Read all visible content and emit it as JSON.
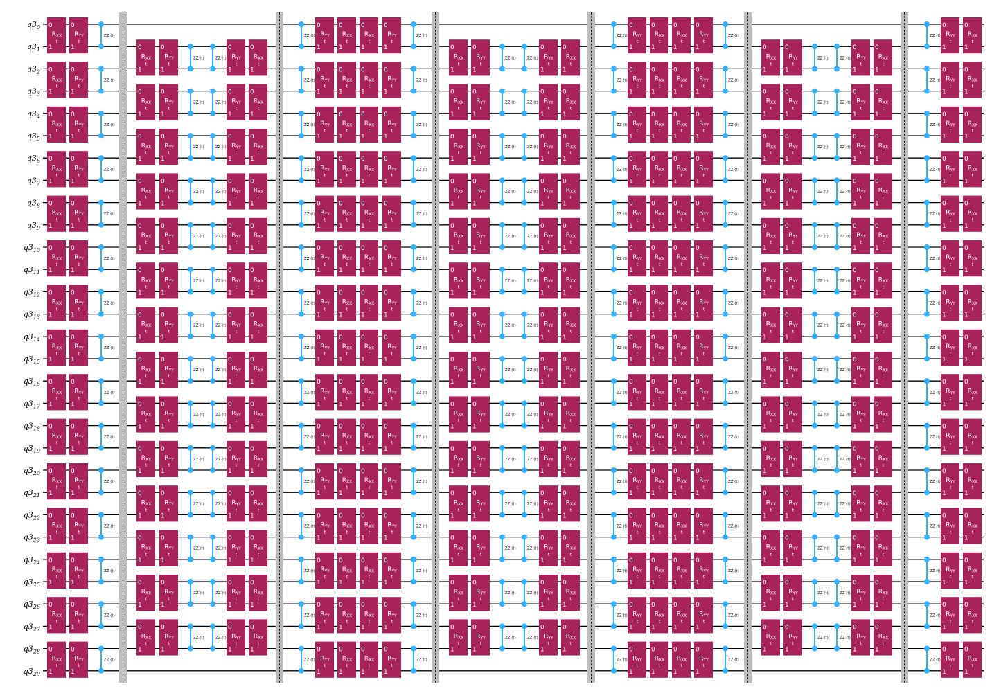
{
  "circuit": {
    "register": "q3",
    "num_qubits": 30,
    "colors": {
      "gate": "#a8235a",
      "zz": "#33b1ff",
      "wire": "#000000",
      "barrier": "#bdbdbd"
    },
    "gate_labels": {
      "RXX": {
        "base": "R",
        "sub": "XX",
        "param": "t"
      },
      "RYY": {
        "base": "R",
        "sub": "YY",
        "param": "t"
      },
      "ZZ": {
        "label": "ZZ (t)"
      }
    },
    "gate_qubit_labels": [
      "0",
      "1"
    ],
    "layers": [
      {
        "pairs": "even",
        "gates": [
          "RXX",
          "RYY",
          "ZZ"
        ]
      },
      {
        "pairs": "odd",
        "gates": [
          "RXX",
          "RYY",
          "ZZ",
          "ZZ",
          "RYY",
          "RXX"
        ]
      },
      {
        "pairs": "even",
        "gates": [
          "ZZ",
          "RYY",
          "RXX",
          "RXX",
          "RYY",
          "ZZ"
        ]
      },
      {
        "pairs": "odd",
        "gates": [
          "RXX",
          "RYY",
          "ZZ",
          "ZZ",
          "RYY",
          "RXX"
        ]
      },
      {
        "pairs": "even",
        "gates": [
          "ZZ",
          "RYY",
          "RXX",
          "RXX",
          "RYY",
          "ZZ"
        ]
      },
      {
        "pairs": "odd",
        "gates": [
          "RXX",
          "RYY",
          "ZZ",
          "ZZ",
          "RYY",
          "RXX"
        ]
      },
      {
        "pairs": "even",
        "gates": [
          "ZZ",
          "RYY",
          "RXX"
        ]
      }
    ],
    "barriers_between_layers": true
  }
}
